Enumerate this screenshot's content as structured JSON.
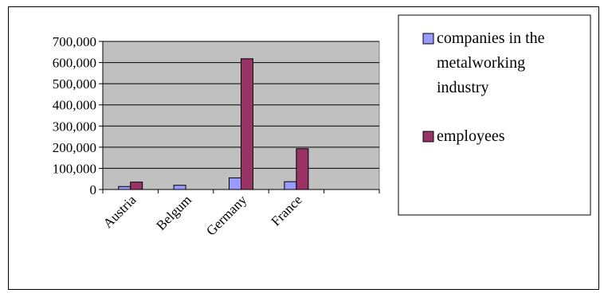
{
  "chart_data": {
    "type": "bar",
    "categories": [
      "Austria",
      "Belgum",
      "Germany",
      "France",
      ""
    ],
    "series": [
      {
        "name": "companies in the metalworking industry",
        "legend_lines": [
          "companies in the",
          "metalworking",
          "industry"
        ],
        "color": "#9999ff",
        "values": [
          14000,
          20000,
          55000,
          37000,
          0
        ]
      },
      {
        "name": "employees",
        "legend_lines": [
          "employees"
        ],
        "color": "#993366",
        "values": [
          35000,
          0,
          618000,
          193000,
          0
        ]
      }
    ],
    "ylim": [
      0,
      700000
    ],
    "yticks": [
      0,
      100000,
      200000,
      300000,
      400000,
      500000,
      600000,
      700000
    ],
    "ytick_labels": [
      "0",
      "100,000",
      "200,000",
      "300,000",
      "400,000",
      "500,000",
      "600,000",
      "700,000"
    ],
    "plot_background": "#c0c0c0",
    "grid": true,
    "legend": "right",
    "title": "",
    "xlabel": "",
    "ylabel": ""
  }
}
